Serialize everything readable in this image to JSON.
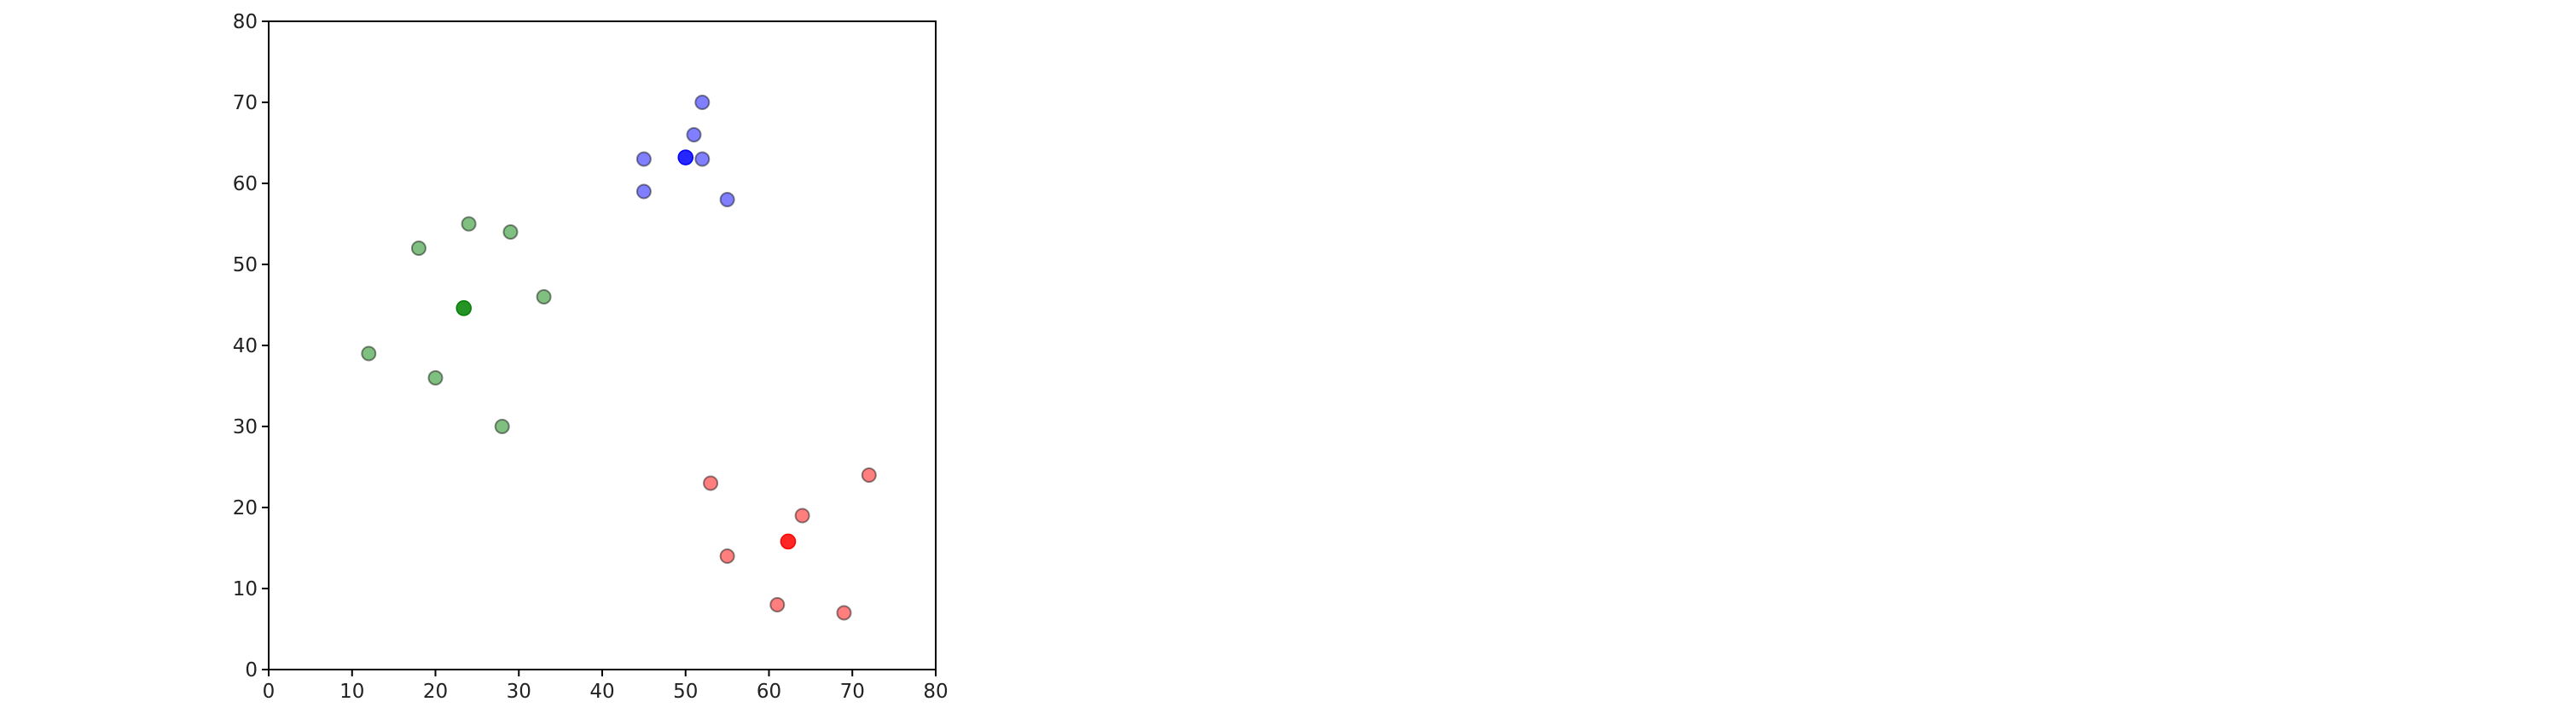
{
  "chart_data": {
    "type": "scatter",
    "title": "",
    "xlabel": "",
    "ylabel": "",
    "xlim": [
      0,
      80
    ],
    "ylim": [
      0,
      80
    ],
    "xticks": [
      "0",
      "10",
      "20",
      "30",
      "40",
      "50",
      "60",
      "70",
      "80"
    ],
    "yticks": [
      "0",
      "10",
      "20",
      "30",
      "40",
      "50",
      "60",
      "70",
      "80"
    ],
    "grid": false,
    "legend": "none",
    "series": [
      {
        "color": "#008000",
        "alpha": 0.5,
        "points": [
          {
            "x": 12,
            "y": 39
          },
          {
            "x": 20,
            "y": 36
          },
          {
            "x": 28,
            "y": 30
          },
          {
            "x": 18,
            "y": 52
          },
          {
            "x": 29,
            "y": 54
          },
          {
            "x": 33,
            "y": 46
          },
          {
            "x": 24,
            "y": 55
          }
        ]
      },
      {
        "color": "#0000ff",
        "alpha": 0.5,
        "points": [
          {
            "x": 45,
            "y": 59
          },
          {
            "x": 45,
            "y": 63
          },
          {
            "x": 52,
            "y": 63
          },
          {
            "x": 51,
            "y": 66
          },
          {
            "x": 52,
            "y": 70
          },
          {
            "x": 55,
            "y": 58
          }
        ]
      },
      {
        "color": "#ff0000",
        "alpha": 0.5,
        "points": [
          {
            "x": 53,
            "y": 23
          },
          {
            "x": 55,
            "y": 14
          },
          {
            "x": 61,
            "y": 8
          },
          {
            "x": 64,
            "y": 19
          },
          {
            "x": 69,
            "y": 7
          },
          {
            "x": 72,
            "y": 24
          }
        ]
      }
    ],
    "centroids": [
      {
        "x": 23.4,
        "y": 44.6,
        "color": "#008000"
      },
      {
        "x": 50,
        "y": 63.2,
        "color": "#0000ff"
      },
      {
        "x": 62.3,
        "y": 15.8,
        "color": "#ff0000"
      }
    ]
  }
}
